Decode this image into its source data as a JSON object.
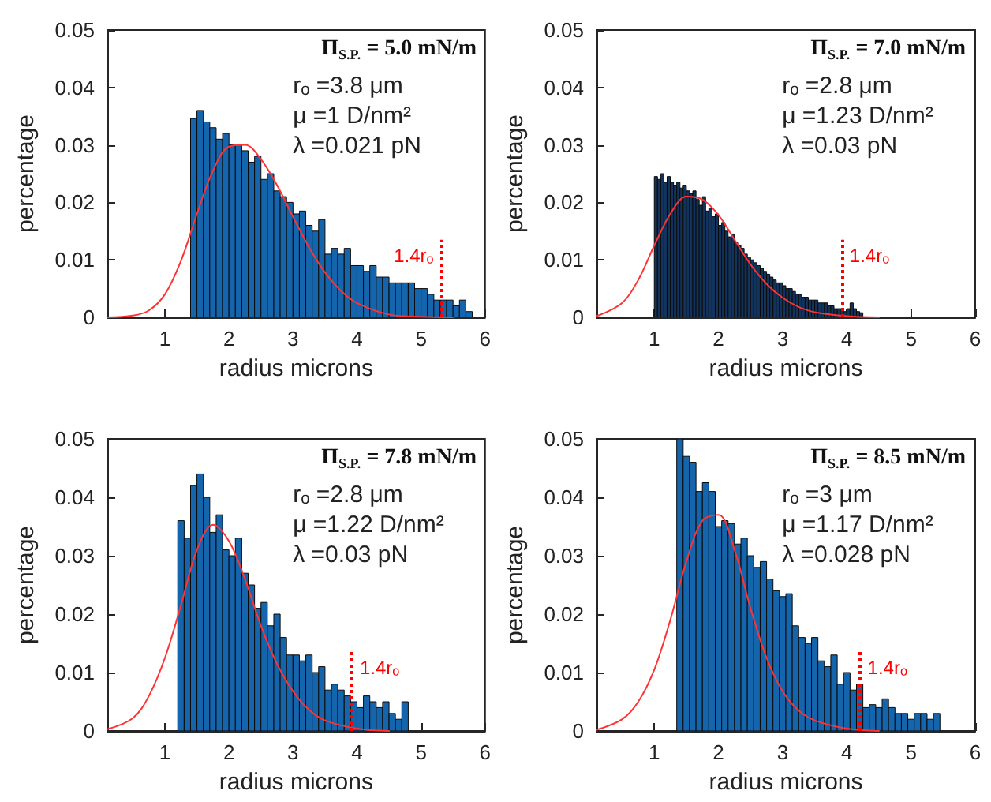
{
  "chart_data": [
    {
      "type": "histogram",
      "xlabel": "radius microns",
      "ylabel": "percentage",
      "xlim": [
        0.1,
        6
      ],
      "xticks": [
        1,
        2,
        3,
        4,
        5,
        6
      ],
      "ylim": [
        0,
        0.05
      ],
      "yticks": [
        0,
        0.01,
        0.02,
        0.03,
        0.04,
        0.05
      ],
      "color": "#1565ad",
      "marker": "none",
      "line_style": "solid",
      "annotations": [
        "Π$_{S.P.}$ = 5.0 mN/m",
        "rₒ =3.8 μm",
        "μ =1 D/nm²",
        "λ =0.021 pN"
      ],
      "bins": [
        1.4,
        1.5,
        1.6,
        1.7,
        1.8,
        1.9,
        2.0,
        2.1,
        2.2,
        2.3,
        2.4,
        2.5,
        2.6,
        2.7,
        2.8,
        2.9,
        3.0,
        3.1,
        3.2,
        3.3,
        3.4,
        3.5,
        3.6,
        3.7,
        3.8,
        3.9,
        4.0,
        4.1,
        4.2,
        4.3,
        4.4,
        4.5,
        4.6,
        4.7,
        4.8,
        4.9,
        5.0,
        5.1,
        5.2,
        5.3,
        5.4,
        5.5,
        5.6,
        5.7,
        5.8
      ],
      "values": [
        0.0346,
        0.036,
        0.034,
        0.033,
        0.031,
        0.032,
        0.03,
        0.03,
        0.029,
        0.027,
        0.028,
        0.024,
        0.025,
        0.022,
        0.021,
        0.02,
        0.018,
        0.0185,
        0.016,
        0.015,
        0.017,
        0.011,
        0.012,
        0.011,
        0.012,
        0.009,
        0.009,
        0.008,
        0.009,
        0.007,
        0.007,
        0.006,
        0.006,
        0.006,
        0.006,
        0.005,
        0.005,
        0.004,
        0.003,
        0.003,
        0.003,
        0.002,
        0.003,
        0.001
      ],
      "series": [
        {
          "type": "line",
          "color": "#ff3333",
          "x": [
            0.1,
            0.5,
            0.75,
            1.0,
            1.25,
            1.5,
            1.75,
            2.0,
            2.25,
            2.5,
            2.75,
            3.0,
            3.25,
            3.5,
            3.75,
            4.0,
            4.5,
            5.0,
            5.5
          ],
          "values": [
            0,
            0.0003,
            0.0012,
            0.004,
            0.0098,
            0.018,
            0.0255,
            0.0297,
            0.03,
            0.0275,
            0.023,
            0.0175,
            0.0122,
            0.0078,
            0.0046,
            0.0025,
            0.0005,
            0.0001,
            0
          ]
        }
      ],
      "ref_lines": [
        {
          "axis": "x",
          "value": 5.32,
          "label": "1.4rₒ",
          "color": "#ff0000",
          "line_style": "dotted"
        }
      ]
    },
    {
      "type": "histogram",
      "xlabel": "radius microns",
      "ylabel": "percentage",
      "xlim": [
        0.1,
        6
      ],
      "xticks": [
        1,
        2,
        3,
        4,
        5,
        6
      ],
      "ylim": [
        0,
        0.05
      ],
      "yticks": [
        0,
        0.01,
        0.02,
        0.03,
        0.04,
        0.05
      ],
      "color": "#12345c",
      "marker": "none",
      "line_style": "solid",
      "annotations": [
        "Π$_{S.P.}$ = 7.0 mN/m",
        "rₒ =2.8 μm",
        "μ =1.23 D/nm²",
        "λ =0.03 pN"
      ],
      "bins": [
        1.0,
        1.05,
        1.1,
        1.15,
        1.2,
        1.25,
        1.3,
        1.35,
        1.4,
        1.45,
        1.5,
        1.55,
        1.6,
        1.65,
        1.7,
        1.75,
        1.8,
        1.85,
        1.9,
        1.95,
        2.0,
        2.05,
        2.1,
        2.15,
        2.2,
        2.25,
        2.3,
        2.35,
        2.4,
        2.45,
        2.5,
        2.55,
        2.6,
        2.65,
        2.7,
        2.75,
        2.8,
        2.85,
        2.9,
        2.95,
        3.0,
        3.05,
        3.1,
        3.15,
        3.2,
        3.25,
        3.3,
        3.35,
        3.4,
        3.45,
        3.5,
        3.55,
        3.6,
        3.65,
        3.7,
        3.75,
        3.8,
        3.85,
        3.9,
        3.95,
        4.0,
        4.05,
        4.1,
        4.15,
        4.2,
        4.25
      ],
      "values": [
        0.0245,
        0.024,
        0.025,
        0.0235,
        0.0245,
        0.0235,
        0.023,
        0.0235,
        0.0225,
        0.023,
        0.022,
        0.0215,
        0.022,
        0.0205,
        0.0195,
        0.021,
        0.0185,
        0.019,
        0.0175,
        0.018,
        0.016,
        0.0165,
        0.015,
        0.014,
        0.0145,
        0.013,
        0.0125,
        0.012,
        0.011,
        0.0105,
        0.01,
        0.0095,
        0.009,
        0.0085,
        0.008,
        0.0075,
        0.007,
        0.0065,
        0.006,
        0.006,
        0.0055,
        0.005,
        0.005,
        0.0045,
        0.004,
        0.004,
        0.0035,
        0.0035,
        0.003,
        0.003,
        0.003,
        0.0025,
        0.0025,
        0.0025,
        0.002,
        0.002,
        0.0015,
        0.0015,
        0.0015,
        0.001,
        0.0015,
        0.0025,
        0.0015,
        0.001,
        0.0008
      ],
      "series": [
        {
          "type": "line",
          "color": "#ff3333",
          "x": [
            0.1,
            0.5,
            0.75,
            1.0,
            1.25,
            1.5,
            1.75,
            2.0,
            2.25,
            2.5,
            2.75,
            3.0,
            3.25,
            3.5,
            4.0,
            4.5
          ],
          "values": [
            0.0002,
            0.0025,
            0.0065,
            0.0125,
            0.018,
            0.021,
            0.0205,
            0.0178,
            0.0135,
            0.0092,
            0.0058,
            0.0034,
            0.0018,
            0.0009,
            0.0002,
            0
          ]
        }
      ],
      "ref_lines": [
        {
          "axis": "x",
          "value": 3.92,
          "label": "1.4rₒ",
          "color": "#ff0000",
          "line_style": "dotted"
        }
      ]
    },
    {
      "type": "histogram",
      "xlabel": "radius microns",
      "ylabel": "percentage",
      "xlim": [
        0.1,
        6
      ],
      "xticks": [
        1,
        2,
        3,
        4,
        5,
        6
      ],
      "ylim": [
        0,
        0.05
      ],
      "yticks": [
        0,
        0.01,
        0.02,
        0.03,
        0.04,
        0.05
      ],
      "color": "#1565ad",
      "marker": "none",
      "line_style": "solid",
      "annotations": [
        "Π$_{S.P.}$ = 7.8 mN/m",
        "rₒ =2.8 μm",
        "μ =1.22 D/nm²",
        "λ =0.03 pN"
      ],
      "bins": [
        1.2,
        1.3,
        1.4,
        1.5,
        1.6,
        1.7,
        1.8,
        1.9,
        2.0,
        2.1,
        2.2,
        2.3,
        2.4,
        2.5,
        2.6,
        2.7,
        2.8,
        2.9,
        3.0,
        3.1,
        3.2,
        3.3,
        3.4,
        3.5,
        3.6,
        3.7,
        3.8,
        3.9,
        4.0,
        4.1,
        4.2,
        4.3,
        4.4,
        4.5,
        4.6,
        4.7,
        4.8
      ],
      "values": [
        0.036,
        0.033,
        0.042,
        0.044,
        0.04,
        0.034,
        0.037,
        0.031,
        0.03,
        0.033,
        0.027,
        0.025,
        0.021,
        0.022,
        0.018,
        0.02,
        0.016,
        0.013,
        0.013,
        0.012,
        0.013,
        0.01,
        0.011,
        0.007,
        0.008,
        0.007,
        0.006,
        0.005,
        0.004,
        0.006,
        0.005,
        0.004,
        0.005,
        0.003,
        0.002,
        0.005
      ],
      "series": [
        {
          "type": "line",
          "color": "#ff3333",
          "x": [
            0.1,
            0.5,
            0.75,
            1.0,
            1.25,
            1.5,
            1.75,
            2.0,
            2.25,
            2.5,
            2.75,
            3.0,
            3.25,
            3.5,
            4.0,
            4.5
          ],
          "values": [
            0.0003,
            0.0022,
            0.006,
            0.0125,
            0.0215,
            0.031,
            0.0353,
            0.0325,
            0.026,
            0.018,
            0.0115,
            0.0068,
            0.0036,
            0.0018,
            0.0004,
            0
          ]
        }
      ],
      "ref_lines": [
        {
          "axis": "x",
          "value": 3.92,
          "label": "1.4rₒ",
          "color": "#ff0000",
          "line_style": "dotted"
        }
      ]
    },
    {
      "type": "histogram",
      "xlabel": "radius microns",
      "ylabel": "percentage",
      "xlim": [
        0.1,
        6
      ],
      "xticks": [
        1,
        2,
        3,
        4,
        5,
        6
      ],
      "ylim": [
        0,
        0.05
      ],
      "yticks": [
        0,
        0.01,
        0.02,
        0.03,
        0.04,
        0.05
      ],
      "color": "#1565ad",
      "marker": "none",
      "line_style": "solid",
      "annotations": [
        "Π$_{S.P.}$ = 8.5 mN/m",
        "rₒ =3 μm",
        "μ =1.17 D/nm²",
        "λ =0.028 pN"
      ],
      "bins": [
        1.35,
        1.45,
        1.55,
        1.65,
        1.75,
        1.85,
        1.95,
        2.05,
        2.15,
        2.25,
        2.35,
        2.45,
        2.55,
        2.65,
        2.75,
        2.85,
        2.95,
        3.05,
        3.15,
        3.25,
        3.35,
        3.45,
        3.55,
        3.65,
        3.75,
        3.85,
        3.95,
        4.05,
        4.15,
        4.25,
        4.35,
        4.45,
        4.55,
        4.65,
        4.75,
        4.85,
        4.95,
        5.05,
        5.15,
        5.25,
        5.35,
        5.45
      ],
      "values": [
        0.05,
        0.047,
        0.046,
        0.041,
        0.0425,
        0.041,
        0.035,
        0.036,
        0.0355,
        0.032,
        0.033,
        0.03,
        0.028,
        0.029,
        0.026,
        0.024,
        0.023,
        0.0235,
        0.018,
        0.016,
        0.015,
        0.016,
        0.012,
        0.011,
        0.013,
        0.008,
        0.01,
        0.007,
        0.008,
        0.004,
        0.0045,
        0.004,
        0.0055,
        0.004,
        0.003,
        0.003,
        0.002,
        0.003,
        0.003,
        0.002,
        0.003
      ],
      "series": [
        {
          "type": "line",
          "color": "#ff3333",
          "x": [
            0.1,
            0.5,
            0.75,
            1.0,
            1.25,
            1.5,
            1.75,
            2.0,
            2.25,
            2.5,
            2.75,
            3.0,
            3.25,
            3.5,
            4.0,
            4.5
          ],
          "values": [
            0.0002,
            0.002,
            0.005,
            0.0105,
            0.019,
            0.029,
            0.036,
            0.037,
            0.031,
            0.021,
            0.0125,
            0.0068,
            0.0035,
            0.0018,
            0.0004,
            0
          ]
        }
      ],
      "ref_lines": [
        {
          "axis": "x",
          "value": 4.2,
          "label": "1.4rₒ",
          "color": "#ff0000",
          "line_style": "dotted"
        }
      ]
    }
  ]
}
